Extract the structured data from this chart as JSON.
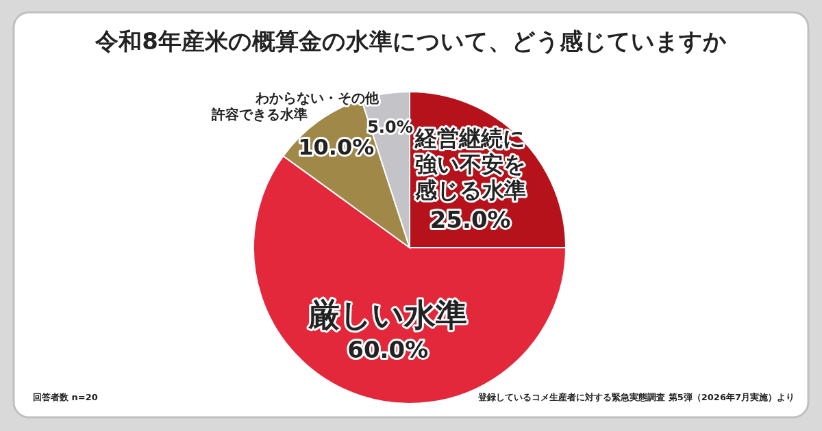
{
  "chart_data": {
    "type": "pie",
    "title": "令和8年産米の概算金の水準について、どう感じていますか",
    "categories": [
      "経営継続に強い不安を感じる水準",
      "厳しい水準",
      "許容できる水準",
      "わからない・その他"
    ],
    "values": [
      25,
      60,
      10,
      5
    ],
    "colors": [
      "#b5121b",
      "#e3283c",
      "#a08848",
      "#c3c3c8"
    ],
    "value_labels": [
      "25.0%",
      "60.0%",
      "10.0%",
      "5.0%"
    ],
    "legend": false,
    "annotations": [
      "回答者数 n=20",
      "登録しているコメ生産者に対する緊急実態調査 第5弾（2026年7月実施）より"
    ]
  }
}
